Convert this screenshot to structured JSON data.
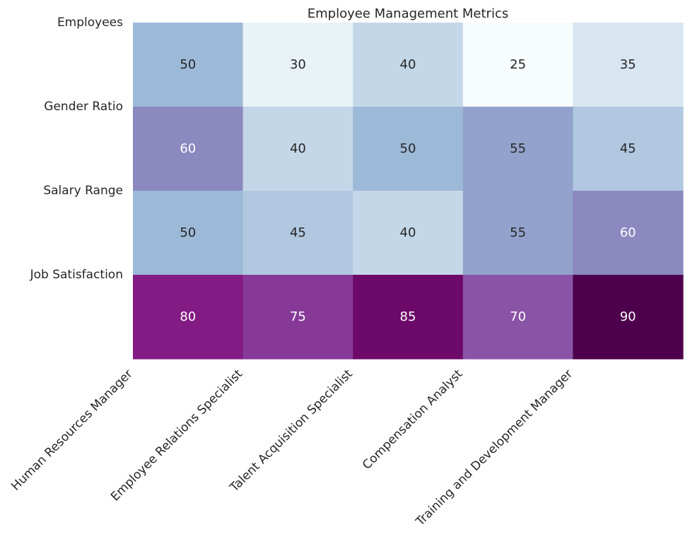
{
  "chart_data": {
    "type": "heatmap",
    "title": "Employee Management Metrics",
    "xlabel": "",
    "ylabel": "",
    "rows": [
      "Employees",
      "Gender Ratio",
      "Salary Range",
      "Job Satisfaction"
    ],
    "columns": [
      "Human Resources Manager",
      "Employee Relations Specialist",
      "Talent Acquisition Specialist",
      "Compensation Analyst",
      "Training and Development Manager"
    ],
    "values": [
      [
        50,
        30,
        40,
        25,
        35
      ],
      [
        60,
        40,
        50,
        55,
        45
      ],
      [
        50,
        45,
        40,
        55,
        60
      ],
      [
        80,
        75,
        85,
        70,
        90
      ]
    ],
    "value_range": [
      25,
      90
    ],
    "colormap": "BuPu",
    "annotated": true,
    "grid": false,
    "colorbar": false
  }
}
